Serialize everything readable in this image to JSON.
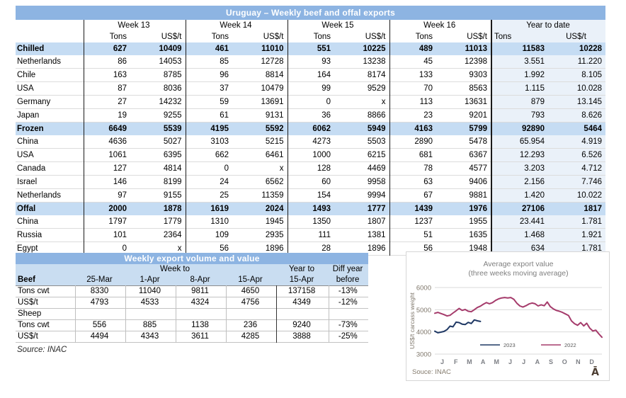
{
  "theme": {
    "title_bar_blue": "#8DB4E2",
    "highlight_row_blue": "#C5DCF3",
    "header_blue": "#C9DDF1",
    "ytd_column_tint": "#EAF1F9"
  },
  "weekly_table": {
    "title": "Uruguay – Weekly beef and offal exports",
    "week_headers": [
      "Week 13",
      "Week 14",
      "Week 15",
      "Week 16"
    ],
    "ytd_header": "Year to date",
    "unit_tons": "Tons",
    "unit_usd": "US$/t",
    "rows": [
      {
        "label": "Chilled",
        "type": "group",
        "values": [
          "627",
          "10409",
          "461",
          "11010",
          "551",
          "10225",
          "489",
          "11013",
          "11583",
          "10228"
        ]
      },
      {
        "label": "Netherlands",
        "type": "country",
        "values": [
          "86",
          "14053",
          "85",
          "12728",
          "93",
          "13238",
          "45",
          "12398",
          "3.551",
          "11.220"
        ]
      },
      {
        "label": "Chile",
        "type": "country",
        "values": [
          "163",
          "8785",
          "96",
          "8814",
          "164",
          "8174",
          "133",
          "9303",
          "1.992",
          "8.105"
        ]
      },
      {
        "label": "USA",
        "type": "country",
        "values": [
          "87",
          "8036",
          "37",
          "10479",
          "99",
          "9529",
          "70",
          "8563",
          "1.115",
          "10.028"
        ]
      },
      {
        "label": "Germany",
        "type": "country",
        "values": [
          "27",
          "14232",
          "59",
          "13691",
          "0",
          "x",
          "113",
          "13631",
          "879",
          "13.145"
        ]
      },
      {
        "label": "Japan",
        "type": "country",
        "values": [
          "19",
          "9255",
          "61",
          "9131",
          "36",
          "8866",
          "23",
          "9201",
          "793",
          "8.626"
        ]
      },
      {
        "label": "Frozen",
        "type": "group",
        "values": [
          "6649",
          "5539",
          "4195",
          "5592",
          "6062",
          "5949",
          "4163",
          "5799",
          "92890",
          "5464"
        ]
      },
      {
        "label": "China",
        "type": "country",
        "values": [
          "4636",
          "5027",
          "3103",
          "5215",
          "4273",
          "5503",
          "2890",
          "5478",
          "65.954",
          "4.919"
        ]
      },
      {
        "label": "USA",
        "type": "country",
        "values": [
          "1061",
          "6395",
          "662",
          "6461",
          "1000",
          "6215",
          "681",
          "6367",
          "12.293",
          "6.526"
        ]
      },
      {
        "label": "Canada",
        "type": "country",
        "values": [
          "127",
          "4814",
          "0",
          "x",
          "128",
          "4469",
          "78",
          "4577",
          "3.203",
          "4.712"
        ]
      },
      {
        "label": "Israel",
        "type": "country",
        "values": [
          "146",
          "8199",
          "24",
          "6562",
          "60",
          "9958",
          "63",
          "9406",
          "2.156",
          "7.746"
        ]
      },
      {
        "label": "Netherlands",
        "type": "country",
        "values": [
          "97",
          "9155",
          "25",
          "11359",
          "154",
          "9994",
          "67",
          "9881",
          "1.420",
          "10.022"
        ]
      },
      {
        "label": "Offal",
        "type": "group",
        "values": [
          "2000",
          "1878",
          "1619",
          "2024",
          "1493",
          "1777",
          "1439",
          "1976",
          "27106",
          "1817"
        ]
      },
      {
        "label": "China",
        "type": "country",
        "values": [
          "1797",
          "1779",
          "1310",
          "1945",
          "1350",
          "1807",
          "1237",
          "1955",
          "23.441",
          "1.781"
        ]
      },
      {
        "label": "Russia",
        "type": "country",
        "values": [
          "101",
          "2364",
          "109",
          "2935",
          "111",
          "1381",
          "51",
          "1635",
          "1.468",
          "1.921"
        ]
      },
      {
        "label": "Egypt",
        "type": "country",
        "values": [
          "0",
          "x",
          "56",
          "1896",
          "28",
          "1896",
          "56",
          "1948",
          "634",
          "1.781"
        ]
      }
    ]
  },
  "volume_table": {
    "title": "Weekly export volume and value",
    "week_to_label": "Week to",
    "year_to_label": "Year to",
    "diff_label": "Diff year",
    "header_row": {
      "label": "Beef",
      "dates": [
        "25-Mar",
        "1-Apr",
        "8-Apr",
        "15-Apr"
      ],
      "year_to": "15-Apr",
      "diff": "before"
    },
    "rows": [
      {
        "label": "Tons cwt",
        "bold_values": true,
        "bold_label": false,
        "values": [
          "8330",
          "11040",
          "9811",
          "4650",
          "137158",
          "-13%"
        ]
      },
      {
        "label": "US$/t",
        "bold_values": false,
        "bold_label": false,
        "values": [
          "4793",
          "4533",
          "4324",
          "4756",
          "4349",
          "-12%"
        ]
      },
      {
        "label": "Sheep",
        "bold_values": false,
        "bold_label": true,
        "values": [
          "",
          "",
          "",
          "",
          "",
          ""
        ]
      },
      {
        "label": "Tons cwt",
        "bold_values": false,
        "bold_label": false,
        "values": [
          "556",
          "885",
          "1138",
          "236",
          "9240",
          "-73%"
        ]
      },
      {
        "label": "US$/t",
        "bold_values": false,
        "bold_label": false,
        "values": [
          "4494",
          "4343",
          "3611",
          "4285",
          "3888",
          "-25%"
        ]
      }
    ],
    "source": "Source: INAC"
  },
  "chart_data": {
    "type": "line",
    "title": "Average export  value",
    "subtitle": "(three weeks moving average)",
    "ylabel": "US$/t carcass weight",
    "yticks": [
      3000,
      4000,
      5000,
      6000
    ],
    "ylim": [
      3000,
      6000
    ],
    "grid": true,
    "legend_position": "bottom-center-inside",
    "x_labels": [
      "J",
      "F",
      "M",
      "A",
      "M",
      "J",
      "J",
      "A",
      "S",
      "O",
      "N",
      "D"
    ],
    "series": [
      {
        "name": "2023",
        "color": "#1F3864",
        "values": [
          4030,
          3960,
          3990,
          4020,
          4100,
          4260,
          4230,
          4440,
          4420,
          4350,
          4330,
          4430,
          4380,
          4540,
          4500,
          4470
        ]
      },
      {
        "name": "2022",
        "color": "#A53B6B",
        "values": [
          4840,
          4880,
          4830,
          4780,
          4720,
          4750,
          4850,
          4950,
          5060,
          4970,
          5010,
          4930,
          4910,
          5000,
          5100,
          5160,
          5250,
          5320,
          5270,
          5320,
          5420,
          5490,
          5530,
          5550,
          5530,
          5550,
          5470,
          5290,
          5170,
          5120,
          5180,
          5260,
          5300,
          5270,
          5170,
          5220,
          5180,
          5350,
          5140,
          5040,
          4970,
          4930,
          4880,
          4810,
          4740,
          4490,
          4370,
          4300,
          4420,
          4270,
          4390,
          4170,
          4040,
          4080,
          3910,
          3760
        ]
      }
    ],
    "source": "Souce: INAC",
    "watermark": "Ā"
  }
}
